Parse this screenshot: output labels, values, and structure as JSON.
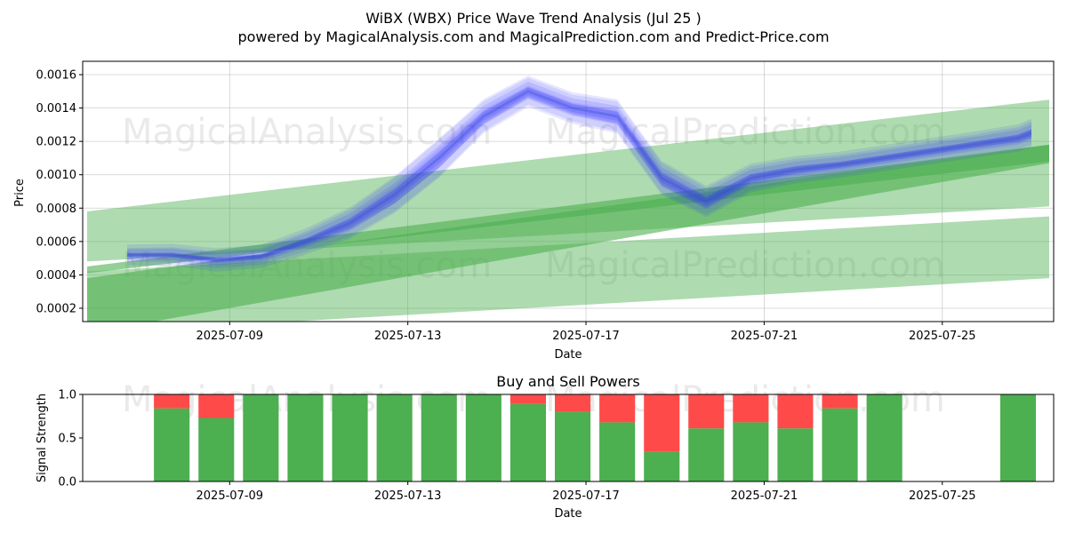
{
  "figure": {
    "title": "WiBX (WBX) Price Wave Trend Analysis (Jul 25 )",
    "subtitle": "powered by MagicalAnalysis.com and MagicalPrediction.com and Predict-Price.com",
    "watermarks": [
      "MagicalAnalysis.com",
      "MagicalPrediction.com"
    ]
  },
  "chart_data": [
    {
      "type": "area",
      "title": "",
      "xlabel": "Date",
      "ylabel": "Price",
      "x_start": "2025-07-06",
      "xlim_days": [
        -0.3,
        21.5
      ],
      "ylim": [
        0.00012,
        0.00168
      ],
      "yticks": [
        0.0002,
        0.0004,
        0.0006,
        0.0008,
        0.001,
        0.0012,
        0.0014,
        0.0016
      ],
      "ytick_labels": [
        "0.0002",
        "0.0004",
        "0.0006",
        "0.0008",
        "0.0010",
        "0.0012",
        "0.0014",
        "0.0016"
      ],
      "xticks_days": [
        3,
        7,
        11,
        15,
        19
      ],
      "xtick_labels": [
        "2025-07-09",
        "2025-07-13",
        "2025-07-17",
        "2025-07-21",
        "2025-07-25"
      ],
      "grid": true,
      "colors": {
        "price_wave": "#3333ff",
        "trend_band": "#4caf50"
      },
      "price_wave": {
        "days": [
          0.7,
          1.7,
          2.7,
          3.7,
          4.7,
          5.7,
          6.7,
          7.7,
          8.7,
          9.7,
          10.7,
          11.7,
          12.7,
          13.7,
          14.7,
          15.7,
          16.7,
          17.7,
          18.7,
          19.7,
          20.7,
          21.0
        ],
        "values": [
          0.00052,
          0.00052,
          0.00049,
          0.00051,
          0.0006,
          0.00071,
          0.00088,
          0.0011,
          0.00135,
          0.0015,
          0.0014,
          0.00135,
          0.00098,
          0.00084,
          0.00098,
          0.00103,
          0.00106,
          0.0011,
          0.00114,
          0.00118,
          0.00122,
          0.00125
        ],
        "spread": [
          8e-05,
          9e-05,
          0.0001,
          0.0001,
          0.00012,
          0.00016,
          0.0002,
          0.00022,
          0.00018,
          0.00016,
          0.00016,
          0.00018,
          0.00018,
          0.00016,
          0.00014,
          0.00013,
          0.00012,
          0.00012,
          0.00012,
          0.00012,
          0.00013,
          0.00014
        ]
      },
      "trend_bands": [
        {
          "name": "upper band",
          "start_day": -0.2,
          "end_day": 21.4,
          "start": [
            0.00078,
            0.00048
          ],
          "end": [
            0.00145,
            0.00081
          ],
          "alpha": 0.45
        },
        {
          "name": "lower band",
          "start_day": -0.2,
          "end_day": 21.4,
          "start": [
            0.00042,
            5e-05
          ],
          "end": [
            0.00075,
            0.00038
          ],
          "alpha": 0.45
        },
        {
          "name": "core band 1",
          "start_day": -0.2,
          "end_day": 21.4,
          "start": [
            0.00038,
            5e-05
          ],
          "end": [
            0.00118,
            0.00107
          ],
          "alpha": 0.6
        },
        {
          "name": "core band 2",
          "start_day": -0.2,
          "end_day": 21.4,
          "start": [
            0.00045,
            0.00041
          ],
          "end": [
            0.00118,
            0.00108
          ],
          "alpha": 0.6
        }
      ]
    },
    {
      "type": "bar",
      "title": "Buy and Sell Powers",
      "xlabel": "Date",
      "ylabel": "Signal Strength",
      "ylim": [
        0,
        1
      ],
      "yticks": [
        0,
        0.5,
        1
      ],
      "ytick_labels": [
        "0.0",
        "0.5",
        "1.0"
      ],
      "xlim_days": [
        -0.3,
        21.5
      ],
      "xticks_days": [
        3,
        7,
        11,
        15,
        19
      ],
      "xtick_labels": [
        "2025-07-09",
        "2025-07-13",
        "2025-07-17",
        "2025-07-21",
        "2025-07-25"
      ],
      "colors": {
        "buy": "#4caf50",
        "sell": "#ff4a4a"
      },
      "series": [
        {
          "name": "buy",
          "days": [
            1.7,
            2.7,
            3.7,
            4.7,
            5.7,
            6.7,
            7.7,
            8.7,
            9.7,
            10.7,
            11.7,
            12.7,
            13.7,
            14.7,
            15.7,
            16.7,
            17.7,
            20.7
          ],
          "values": [
            0.84,
            0.73,
            1.0,
            1.0,
            1.0,
            1.0,
            1.0,
            1.0,
            0.89,
            0.8,
            0.68,
            0.34,
            0.61,
            0.68,
            0.61,
            0.84,
            1.0,
            1.0
          ]
        },
        {
          "name": "sell",
          "days": [
            1.7,
            2.7,
            3.7,
            4.7,
            5.7,
            6.7,
            7.7,
            8.7,
            9.7,
            10.7,
            11.7,
            12.7,
            13.7,
            14.7,
            15.7,
            16.7,
            17.7,
            20.7
          ],
          "values": [
            0.16,
            0.27,
            0.0,
            0.0,
            0.0,
            0.0,
            0.0,
            0.0,
            0.11,
            0.2,
            0.32,
            0.66,
            0.39,
            0.32,
            0.39,
            0.16,
            0.0,
            0.0
          ]
        }
      ]
    }
  ]
}
